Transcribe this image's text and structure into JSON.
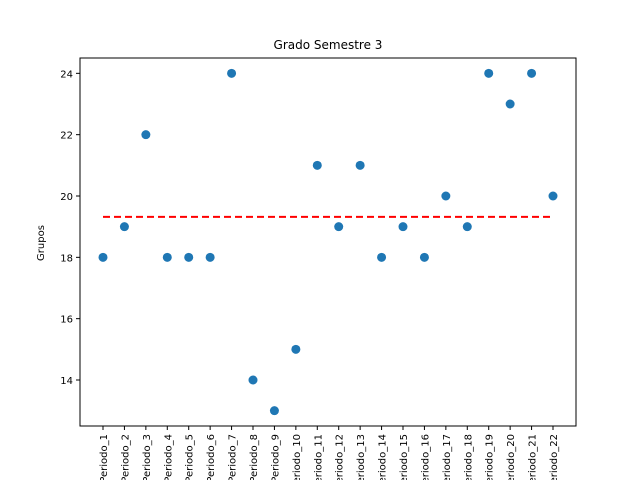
{
  "chart_data": {
    "type": "scatter",
    "title": "Grado Semestre 3",
    "xlabel": "",
    "ylabel": "Grupos",
    "categories": [
      "Periodo_1",
      "Periodo_2",
      "Periodo_3",
      "Periodo_4",
      "Periodo_5",
      "Periodo_6",
      "Periodo_7",
      "Periodo_8",
      "Periodo_9",
      "Periodo_10",
      "Periodo_11",
      "Periodo_12",
      "Periodo_13",
      "Periodo_14",
      "Periodo_15",
      "Periodo_16",
      "Periodo_17",
      "Periodo_18",
      "Periodo_19",
      "Periodo_20",
      "Periodo_21",
      "Periodo_22"
    ],
    "values": [
      18,
      19,
      22,
      18,
      18,
      18,
      24,
      14,
      13,
      15,
      21,
      19,
      21,
      18,
      19,
      18,
      20,
      19,
      24,
      23,
      24,
      20
    ],
    "mean_line": 19.32,
    "ylim": [
      12.5,
      24.5
    ],
    "yticks": [
      14,
      16,
      18,
      20,
      22,
      24
    ],
    "colors": {
      "points": "#1f77b4",
      "mean_line": "#ff0000"
    },
    "grid": false
  }
}
